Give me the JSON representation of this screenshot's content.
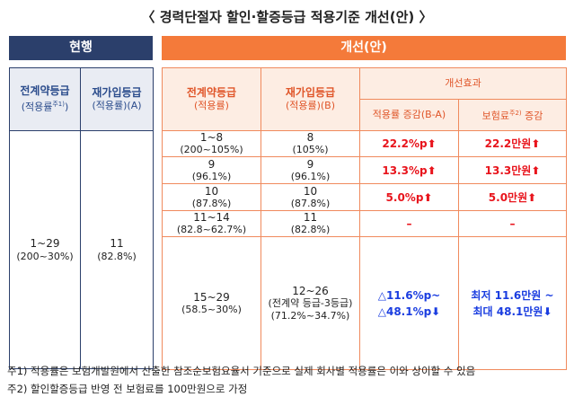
{
  "title": "〈 경력단절자 할인·할증등급 적용기준 개선(안) 〉",
  "current": {
    "header": "현행",
    "columns": [
      {
        "label": "전계약등급",
        "note": "(적용률",
        "note_sup": "주1)",
        "note_end": ")"
      },
      {
        "label": "재가입등급",
        "note": "(적용률)(A)"
      }
    ],
    "row": [
      {
        "main": "1~29",
        "sub": "(200~30%)"
      },
      {
        "main": "11",
        "sub": "(82.8%)"
      }
    ]
  },
  "improved": {
    "header": "개선(안)",
    "columns": [
      {
        "label": "전계약등급",
        "note": "(적용률)"
      },
      {
        "label": "재가입등급",
        "note": "(적용률)(B)"
      }
    ],
    "effect_header": "개선효과",
    "effect_columns": [
      {
        "label": "적용률 증감(B-A)"
      },
      {
        "label": "보험료",
        "sup": "주2)",
        "label_end": "증감"
      }
    ],
    "rows": [
      [
        [
          "1~8",
          "(200~105%)"
        ],
        [
          "8",
          "(105%)"
        ],
        [
          "22.2%p⬆"
        ],
        [
          "22.2만원⬆"
        ]
      ],
      [
        [
          "9",
          "(96.1%)"
        ],
        [
          "9",
          "(96.1%)"
        ],
        [
          "13.3%p⬆"
        ],
        [
          "13.3만원⬆"
        ]
      ],
      [
        [
          "10",
          "(87.8%)"
        ],
        [
          "10",
          "(87.8%)"
        ],
        [
          "5.0%p⬆"
        ],
        [
          "5.0만원⬆"
        ]
      ],
      [
        [
          "11~14",
          "(82.8~62.7%)"
        ],
        [
          "11",
          "(82.8%)"
        ],
        [
          "–"
        ],
        [
          "–"
        ]
      ],
      [
        [
          "15~29",
          "(58.5~30%)"
        ],
        [
          "12~26",
          "(전계약 등급-3등급)",
          "(71.2%~34.7%)"
        ],
        [
          "△11.6%p~",
          "△48.1%p⬇"
        ],
        [
          "최저 11.6만원 ~",
          "최대 48.1만원⬇"
        ]
      ]
    ]
  },
  "footnotes": [
    "주1) 적용률은 보험개발원에서 산출한 참조순보험요율서 기준으로 실제 회사별 적용률은 이와 상이할 수 있음",
    "주2) 할인할증등급 반영 전 보험료를 100만원으로 가정"
  ]
}
